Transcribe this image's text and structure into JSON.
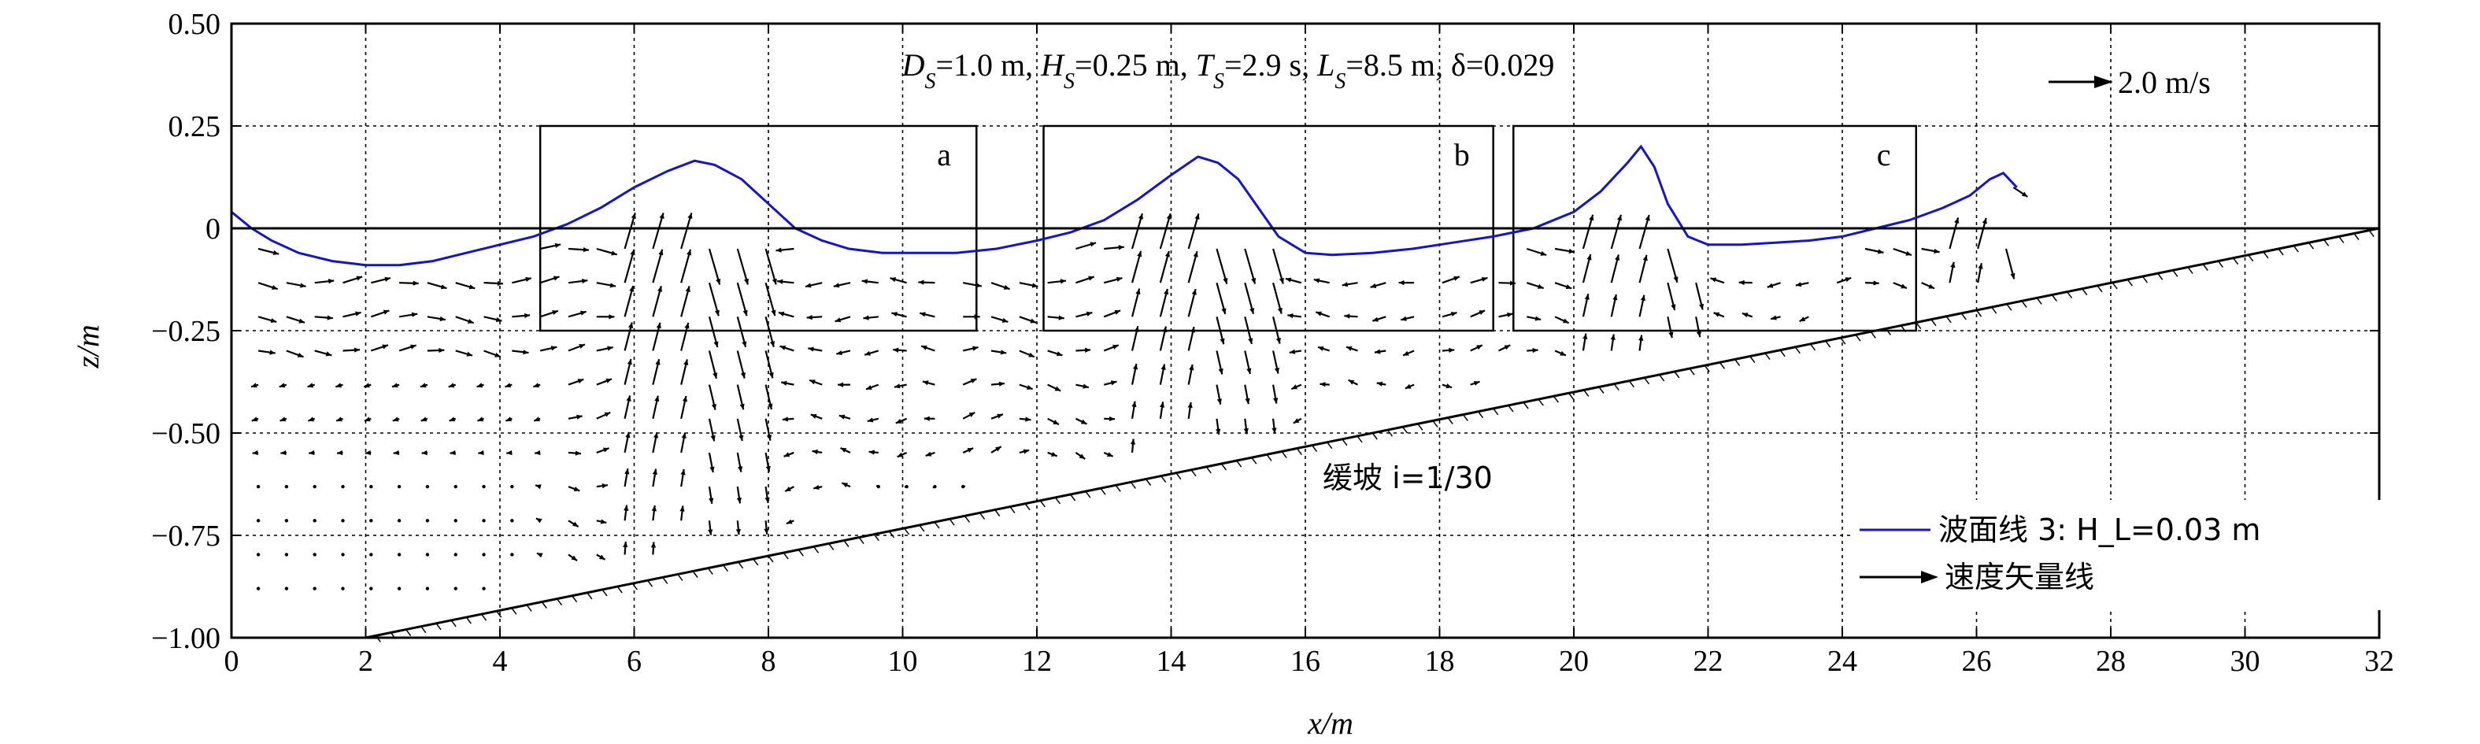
{
  "chart_data": {
    "type": "line",
    "xlabel": "x/m",
    "ylabel": "z/m",
    "xlim": [
      0,
      32
    ],
    "ylim": [
      -1.0,
      0.5
    ],
    "xticks": [
      "0",
      "2",
      "4",
      "6",
      "8",
      "10",
      "12",
      "14",
      "16",
      "18",
      "20",
      "22",
      "24",
      "26",
      "28",
      "30",
      "32"
    ],
    "yticks": [
      "0.50",
      "0.25",
      "0",
      "-0.25",
      "-0.50",
      "-0.75",
      "-1.00"
    ],
    "grid": true,
    "parameter_text": "D_S=1.0 m, H_S=0.25 m, T_S=2.9 s, L_S=8.5 m, δ=0.029",
    "scale_arrow_label": "2.0 m/s",
    "slope_label": "缓坡 i=1/30",
    "regions": [
      {
        "label": "a",
        "x": [
          4.6,
          11.1
        ],
        "z": [
          -0.25,
          0.25
        ]
      },
      {
        "label": "b",
        "x": [
          12.1,
          18.8
        ],
        "z": [
          -0.25,
          0.25
        ]
      },
      {
        "label": "c",
        "x": [
          19.1,
          25.1
        ],
        "z": [
          -0.25,
          0.25
        ]
      }
    ],
    "slope_line": {
      "x": [
        2,
        32
      ],
      "z": [
        -1.0,
        0.0
      ]
    },
    "series": [
      {
        "name": "波面线 3: H_L=0.03 m",
        "color": "#1414c8",
        "x": [
          0,
          0.3,
          0.6,
          1.0,
          1.5,
          2.0,
          2.5,
          3.0,
          3.5,
          4.0,
          4.5,
          5.0,
          5.5,
          6.0,
          6.5,
          6.9,
          7.2,
          7.6,
          8.0,
          8.4,
          8.8,
          9.2,
          9.7,
          10.2,
          10.8,
          11.4,
          12.0,
          12.5,
          13.0,
          13.5,
          14.0,
          14.4,
          14.7,
          15.0,
          15.3,
          15.6,
          16.0,
          16.4,
          17.0,
          17.6,
          18.2,
          18.8,
          19.4,
          20.0,
          20.4,
          20.8,
          21.0,
          21.2,
          21.4,
          21.7,
          22.0,
          22.5,
          23.0,
          23.5,
          24.0,
          24.5,
          25.0,
          25.5,
          25.9,
          26.2,
          26.4,
          26.6
        ],
        "z": [
          0.04,
          0.0,
          -0.03,
          -0.06,
          -0.08,
          -0.09,
          -0.09,
          -0.08,
          -0.06,
          -0.04,
          -0.02,
          0.01,
          0.05,
          0.1,
          0.14,
          0.165,
          0.155,
          0.12,
          0.06,
          0.0,
          -0.03,
          -0.05,
          -0.06,
          -0.06,
          -0.06,
          -0.05,
          -0.03,
          -0.01,
          0.02,
          0.07,
          0.13,
          0.175,
          0.16,
          0.12,
          0.05,
          -0.02,
          -0.06,
          -0.065,
          -0.06,
          -0.05,
          -0.035,
          -0.02,
          0.0,
          0.04,
          0.09,
          0.16,
          0.2,
          0.15,
          0.06,
          -0.02,
          -0.04,
          -0.04,
          -0.035,
          -0.03,
          -0.02,
          0.0,
          0.02,
          0.05,
          0.08,
          0.12,
          0.135,
          0.1
        ]
      }
    ],
    "legend": [
      {
        "label": "波面线 3: H_L=0.03 m",
        "kind": "line"
      },
      {
        "label": "速度矢量线",
        "kind": "arrow"
      }
    ],
    "legend_position": "bottom-right"
  }
}
